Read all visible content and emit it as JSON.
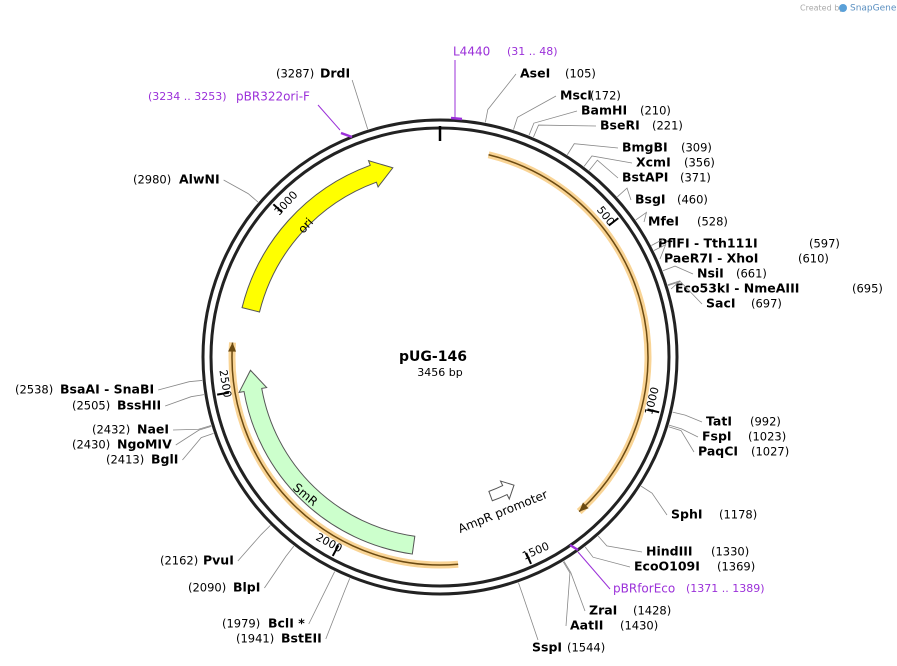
{
  "watermark": {
    "prefix": "Created by",
    "brand": "SnapGene"
  },
  "map": {
    "name": "pUG-146",
    "length": {
      "value": 3456,
      "label": "3456 bp"
    },
    "ticks": [
      500,
      1000,
      1500,
      2000,
      2500,
      3000
    ]
  },
  "enzymes": [
    {
      "name": "AseI",
      "position": {
        "value": 105,
        "label": "(105)"
      }
    },
    {
      "name": "MscI",
      "position": {
        "value": 172,
        "label": "(172)"
      }
    },
    {
      "name": "BamHI",
      "position": {
        "value": 210,
        "label": "(210)"
      }
    },
    {
      "name": "BseRI",
      "position": {
        "value": 221,
        "label": "(221)"
      }
    },
    {
      "name": "BmgBI",
      "position": {
        "value": 309,
        "label": "(309)"
      }
    },
    {
      "name": "XcmI",
      "position": {
        "value": 356,
        "label": "(356)"
      }
    },
    {
      "name": "BstAPI",
      "position": {
        "value": 371,
        "label": "(371)"
      }
    },
    {
      "name": "BsgI",
      "position": {
        "value": 460,
        "label": "(460)"
      }
    },
    {
      "name": "MfeI",
      "position": {
        "value": 528,
        "label": "(528)"
      }
    },
    {
      "name": "PflFI - Tth111I",
      "position": {
        "value": 597,
        "label": "(597)"
      }
    },
    {
      "name": "PaeR7I - XhoI",
      "position": {
        "value": 610,
        "label": "(610)"
      }
    },
    {
      "name": "NsiI",
      "position": {
        "value": 661,
        "label": "(661)"
      }
    },
    {
      "name": "Eco53kI - NmeAIII",
      "position": {
        "value": 695,
        "label": "(695)"
      }
    },
    {
      "name": "SacI",
      "position": {
        "value": 697,
        "label": "(697)"
      }
    },
    {
      "name": "TatI",
      "position": {
        "value": 992,
        "label": "(992)"
      }
    },
    {
      "name": "FspI",
      "position": {
        "value": 1023,
        "label": "(1023)"
      }
    },
    {
      "name": "PaqCI",
      "position": {
        "value": 1027,
        "label": "(1027)"
      }
    },
    {
      "name": "SphI",
      "position": {
        "value": 1178,
        "label": "(1178)"
      }
    },
    {
      "name": "HindIII",
      "position": {
        "value": 1330,
        "label": "(1330)"
      }
    },
    {
      "name": "EcoO109I",
      "position": {
        "value": 1369,
        "label": "(1369)"
      }
    },
    {
      "name": "ZraI",
      "position": {
        "value": 1428,
        "label": "(1428)"
      }
    },
    {
      "name": "AatII",
      "position": {
        "value": 1430,
        "label": "(1430)"
      }
    },
    {
      "name": "SspI",
      "position": {
        "value": 1544,
        "label": "(1544)"
      }
    },
    {
      "name": "DrdI",
      "position": {
        "value": 3287,
        "label": "(3287)"
      }
    },
    {
      "name": "AlwNI",
      "position": {
        "value": 2980,
        "label": "(2980)"
      }
    },
    {
      "name": "BsaAI - SnaBI",
      "position": {
        "value": 2538,
        "label": "(2538)"
      }
    },
    {
      "name": "BssHII",
      "position": {
        "value": 2505,
        "label": "(2505)"
      }
    },
    {
      "name": "NaeI",
      "position": {
        "value": 2432,
        "label": "(2432)"
      }
    },
    {
      "name": "NgoMIV",
      "position": {
        "value": 2430,
        "label": "(2430)"
      }
    },
    {
      "name": "BglI",
      "position": {
        "value": 2413,
        "label": "(2413)"
      }
    },
    {
      "name": "PvuI",
      "position": {
        "value": 2162,
        "label": "(2162)"
      }
    },
    {
      "name": "BlpI",
      "position": {
        "value": 2090,
        "label": "(2090)"
      }
    },
    {
      "name": "BclI *",
      "position": {
        "value": 1979,
        "label": "(1979)"
      }
    },
    {
      "name": "BstEII",
      "position": {
        "value": 1941,
        "label": "(1941)"
      }
    }
  ],
  "primers": [
    {
      "name": "L4440",
      "range": "(31 .. 48)"
    },
    {
      "name": "pBR322ori-F",
      "range": "(3234 .. 3253)"
    },
    {
      "name": "pBRforEco",
      "range": "(1371 .. 1389)"
    }
  ],
  "features": [
    {
      "name": "ori",
      "color": "#ffff00"
    },
    {
      "name": "SmR",
      "color": "#ccffcc"
    },
    {
      "name": "AmpR promoter",
      "color": "#ffffff"
    }
  ]
}
